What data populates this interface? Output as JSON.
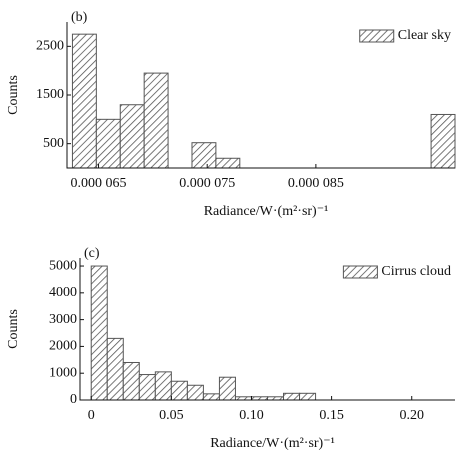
{
  "chart_data": [
    {
      "type": "histogram",
      "panel_label": "(b)",
      "x_label": "Radiance/W·(m²·sr)⁻¹",
      "y_label": "Counts",
      "bins": [
        6.26e-05,
        6.48e-05,
        6.7e-05,
        6.92e-05,
        7.14e-05,
        7.36e-05,
        7.58e-05,
        7.8e-05,
        8.02e-05,
        8.24e-05,
        8.46e-05,
        8.68e-05,
        8.9e-05,
        9.12e-05,
        9.34e-05,
        9.56e-05,
        9.78e-05
      ],
      "series": [
        {
          "name": "Clear sky",
          "color": "#555555",
          "values": [
            2750,
            1000,
            1300,
            1950,
            0,
            520,
            200,
            0,
            0,
            0,
            0,
            0,
            0,
            0,
            0,
            1100
          ]
        }
      ],
      "xlim": [
        6.21e-05,
        9.78e-05
      ],
      "ylim": [
        0,
        3000
      ],
      "xticks": [
        {
          "value": 6.5e-05,
          "label": "0.000 065"
        },
        {
          "value": 7.5e-05,
          "label": "0.000 075"
        },
        {
          "value": 8.5e-05,
          "label": "0.000 085"
        }
      ],
      "yticks": [
        500,
        1500,
        2500
      ],
      "legend": "upper right"
    },
    {
      "type": "histogram",
      "panel_label": "(c)",
      "x_label": "Radiance/W·(m²·sr)⁻¹",
      "y_label": "Counts",
      "bins": [
        0,
        0.01,
        0.02,
        0.03,
        0.04,
        0.05,
        0.06,
        0.07,
        0.08,
        0.09,
        0.1,
        0.11,
        0.12,
        0.13,
        0.14
      ],
      "series": [
        {
          "name": "Cirrus cloud",
          "color": "#555555",
          "values": [
            5000,
            2300,
            1400,
            950,
            1050,
            700,
            550,
            230,
            850,
            120,
            120,
            120,
            250,
            250
          ]
        }
      ],
      "xlim": [
        -0.007,
        0.227
      ],
      "ylim": [
        0,
        5300
      ],
      "xticks": [
        0,
        0.05,
        {
          "value": 0.1,
          "label": "0.10"
        },
        0.15,
        {
          "value": 0.2,
          "label": "0.20"
        }
      ],
      "yticks": [
        0,
        1000,
        2000,
        3000,
        4000,
        5000
      ],
      "legend": "upper right"
    }
  ]
}
